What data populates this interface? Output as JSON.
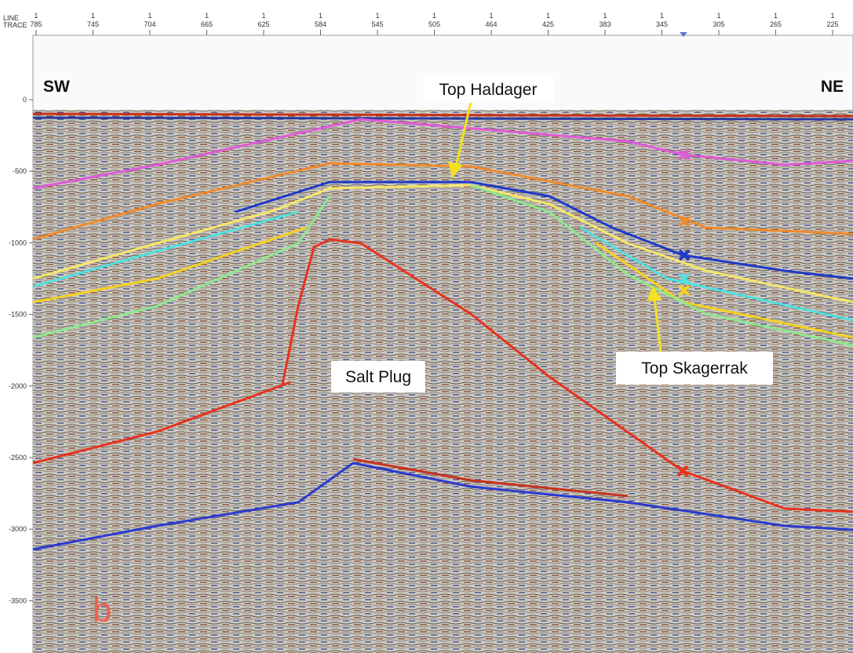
{
  "top_axis": {
    "line_label": "LINE",
    "trace_label": "TRACE",
    "ticks": [
      {
        "line": "1",
        "trace": "785"
      },
      {
        "line": "1",
        "trace": "745"
      },
      {
        "line": "1",
        "trace": "704"
      },
      {
        "line": "1",
        "trace": "665"
      },
      {
        "line": "1",
        "trace": "625"
      },
      {
        "line": "1",
        "trace": "584"
      },
      {
        "line": "1",
        "trace": "545"
      },
      {
        "line": "1",
        "trace": "505"
      },
      {
        "line": "1",
        "trace": "464"
      },
      {
        "line": "1",
        "trace": "425"
      },
      {
        "line": "1",
        "trace": "383"
      },
      {
        "line": "1",
        "trace": "345"
      },
      {
        "line": "1",
        "trace": "305"
      },
      {
        "line": "1",
        "trace": "265"
      },
      {
        "line": "1",
        "trace": "225"
      }
    ]
  },
  "depth_axis": {
    "ticks": [
      "0",
      "-500",
      "-1000",
      "-1500",
      "-2000",
      "-2500",
      "-3000",
      "-3500"
    ]
  },
  "annotations": {
    "left_direction": "SW",
    "right_direction": "NE",
    "top_haldager": "Top Haldager",
    "top_skagerrak": "Top Skagerrak",
    "salt_plug": "Salt Plug",
    "panel": "b"
  }
}
